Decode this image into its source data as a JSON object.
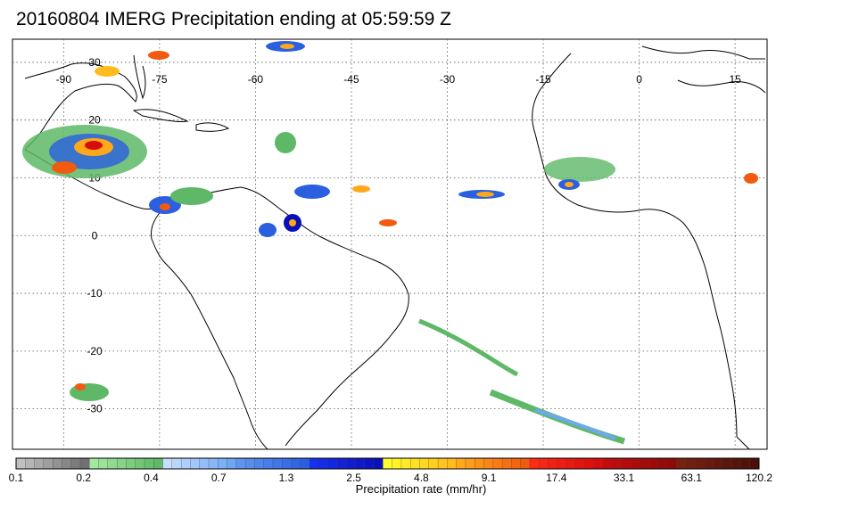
{
  "title": "20160804 IMERG Precipitation ending at 05:59:59 Z",
  "map": {
    "lon_labels": [
      "-90",
      "-75",
      "-60",
      "-45",
      "-30",
      "-15",
      "0",
      "15"
    ],
    "lat_labels": [
      "30",
      "20",
      "10",
      "0",
      "-10",
      "-20",
      "-30"
    ],
    "lon_values": [
      -90,
      -75,
      -60,
      -45,
      -30,
      -15,
      0,
      15
    ],
    "lat_values": [
      30,
      20,
      10,
      0,
      -10,
      -20,
      -30
    ],
    "lon_range": [
      -98,
      20
    ],
    "lat_range": [
      34,
      -37
    ]
  },
  "colorbar": {
    "title": "Precipitation rate (mm/hr)",
    "tick_labels": [
      "0.1",
      "0.2",
      "0.4",
      "0.7",
      "1.3",
      "2.5",
      "4.8",
      "9.1",
      "17.4",
      "33.1",
      "63.1",
      "120.2"
    ],
    "groups": [
      {
        "name": "0.1-0.25",
        "color_start": "#c0c0c0",
        "color_end": "#707070",
        "count": 8
      },
      {
        "name": "0.25-0.5",
        "color_start": "#a6e8a0",
        "color_end": "#5eb867",
        "count": 8
      },
      {
        "name": "0.5-1",
        "color_start": "#c8ddff",
        "color_end": "#6fa7f2",
        "count": 8
      },
      {
        "name": "1-2",
        "color_start": "#5f95ef",
        "color_end": "#2a5fe0",
        "count": 8
      },
      {
        "name": "2-5",
        "color_start": "#1830f0",
        "color_end": "#0a10b8",
        "count": 8
      },
      {
        "name": "5-10",
        "color_start": "#fffd2a",
        "color_end": "#ffbc1c",
        "count": 8
      },
      {
        "name": "10-20",
        "color_start": "#ffa81c",
        "color_end": "#f25a10",
        "count": 8
      },
      {
        "name": "20-50",
        "color_start": "#ff2a14",
        "color_end": "#d80c0c",
        "count": 8
      },
      {
        "name": "50-100",
        "color_start": "#c40c0c",
        "color_end": "#8e0a0a",
        "count": 8
      },
      {
        "name": "100+",
        "color_start": "#7a2010",
        "color_end": "#4a1008",
        "count": 9
      }
    ]
  }
}
